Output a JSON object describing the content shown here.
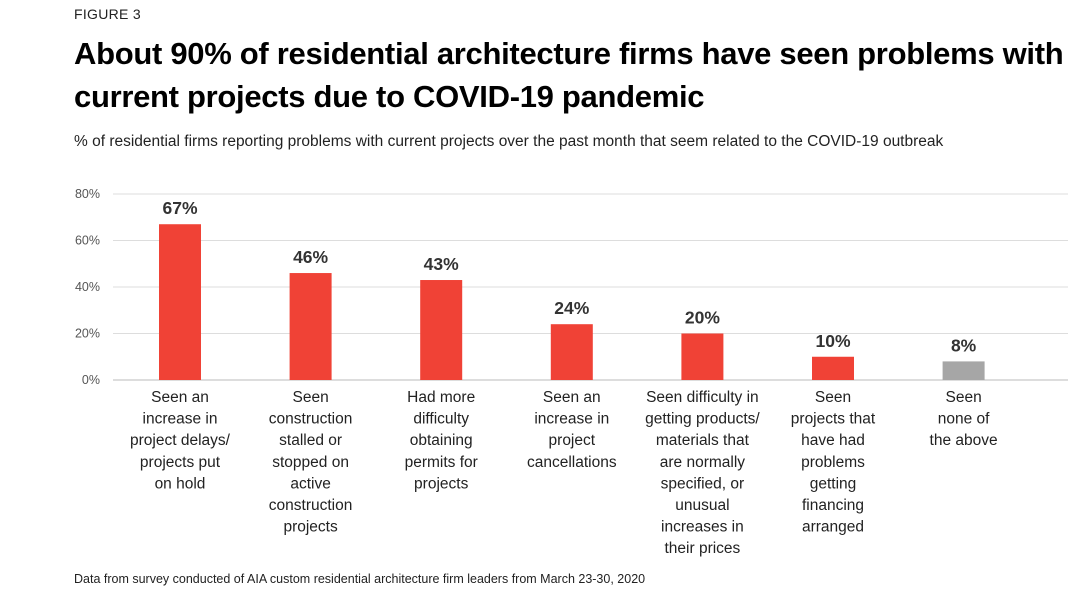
{
  "figure_label": "FIGURE 3",
  "title": "About 90% of residential architecture firms have seen problems with current projects due to COVID-19 pandemic",
  "subtitle": "% of residential firms reporting problems with current projects over the past month that seem related to the COVID-19 outbreak",
  "source": "Data from survey conducted of AIA custom residential architecture firm leaders from March 23-30, 2020",
  "colors": {
    "primary": "#f04236",
    "secondary": "#a6a6a6",
    "grid": "#dddddd"
  },
  "chart_data": {
    "type": "bar",
    "categories": [
      [
        "Seen an",
        "increase in",
        "project delays/",
        "projects put",
        "on hold"
      ],
      [
        "Seen",
        "construction",
        "stalled or",
        "stopped on",
        "active",
        "construction",
        "projects"
      ],
      [
        "Had more",
        "difficulty",
        "obtaining",
        "permits for",
        "projects"
      ],
      [
        "Seen an",
        "increase in",
        "project",
        "cancellations"
      ],
      [
        "Seen difficulty in",
        "getting products/",
        "materials that",
        "are normally",
        "specified, or",
        "unusual",
        "increases in",
        "their prices"
      ],
      [
        "Seen",
        "projects that",
        "have had",
        "problems",
        "getting",
        "financing",
        "arranged"
      ],
      [
        "Seen",
        "none of",
        "the above"
      ]
    ],
    "values": [
      67,
      46,
      43,
      24,
      20,
      10,
      8
    ],
    "value_labels": [
      "67%",
      "46%",
      "43%",
      "24%",
      "20%",
      "10%",
      "8%"
    ],
    "bar_colors": [
      "#f04236",
      "#f04236",
      "#f04236",
      "#f04236",
      "#f04236",
      "#f04236",
      "#a6a6a6"
    ],
    "yticks": [
      0,
      20,
      40,
      60,
      80
    ],
    "ytick_labels": [
      "0%",
      "20%",
      "40%",
      "60%",
      "80%"
    ],
    "ylim": [
      0,
      80
    ],
    "grid": true,
    "legend": "none"
  }
}
